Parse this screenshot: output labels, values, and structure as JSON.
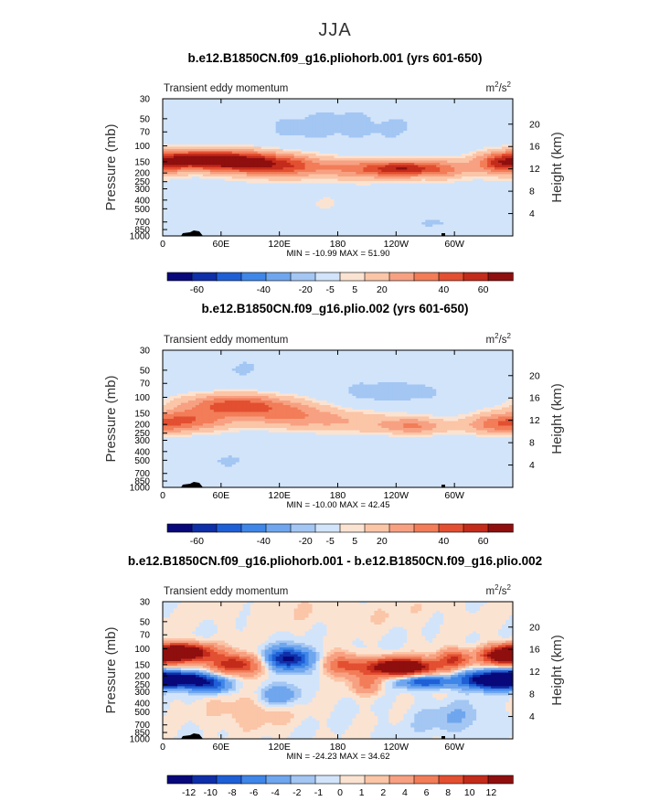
{
  "figure_title": "JJA",
  "colors": {
    "scale": [
      "#08087a",
      "#0f2fa8",
      "#1f5fd6",
      "#3f86e8",
      "#6fa6ee",
      "#a3c6f3",
      "#d2e4fa",
      "#fbe3d2",
      "#fbc5a7",
      "#f7a182",
      "#f27d58",
      "#e34f31",
      "#c32b1b",
      "#8f0f0f"
    ],
    "frame": "#000000",
    "topo": "#000000"
  },
  "chart_data": [
    {
      "type": "contour",
      "title": "b.e12.B1850CN.f09_g16.pliohorb.001 (yrs 601-650)",
      "left_label": "Transient eddy momentum",
      "units_label": "m",
      "units_sup1": "2",
      "units_mid": "/s",
      "units_sup2": "2",
      "ylabel": "Pressure (mb)",
      "ylabel_right": "Height (km)",
      "xticks": [
        "0",
        "60E",
        "120E",
        "180",
        "120W",
        "60W"
      ],
      "xtick_values": [
        0,
        60,
        120,
        180,
        240,
        300
      ],
      "xlim": [
        0,
        360
      ],
      "pressure_ticks": [
        "30",
        "50",
        "70",
        "100",
        "150",
        "200",
        "250",
        "300",
        "400",
        "500",
        "700",
        "850",
        "1000"
      ],
      "pressure_values": [
        30,
        50,
        70,
        100,
        150,
        200,
        250,
        300,
        400,
        500,
        700,
        850,
        1000
      ],
      "height_ticks": [
        "20",
        "16",
        "12",
        "8",
        "4"
      ],
      "height_values": [
        20,
        16,
        12,
        8,
        4
      ],
      "ylim": [
        1000,
        30
      ],
      "minmax": "MIN = -10.99   MAX =  51.90",
      "min": -10.99,
      "max": 51.9,
      "colorbar_labels": [
        "-60",
        "-40",
        "-20",
        "-5",
        "5",
        "20",
        "40",
        "60"
      ],
      "blobs": [
        {
          "lon": 30,
          "p": 140,
          "wl": 34,
          "wp": 0.18,
          "a": 46
        },
        {
          "lon": 80,
          "p": 150,
          "wl": 36,
          "wp": 0.2,
          "a": 52
        },
        {
          "lon": 130,
          "p": 170,
          "wl": 34,
          "wp": 0.2,
          "a": 34
        },
        {
          "lon": 210,
          "p": 180,
          "wl": 30,
          "wp": 0.18,
          "a": 32
        },
        {
          "lon": 250,
          "p": 180,
          "wl": 22,
          "wp": 0.14,
          "a": 44
        },
        {
          "lon": 290,
          "p": 180,
          "wl": 20,
          "wp": 0.18,
          "a": 28
        },
        {
          "lon": 350,
          "p": 160,
          "wl": 20,
          "wp": 0.2,
          "a": 42
        },
        {
          "lon": 180,
          "p": 60,
          "wl": 110,
          "wp": 0.5,
          "a": -6
        },
        {
          "lon": 60,
          "p": 600,
          "wl": 40,
          "wp": 0.3,
          "a": -5
        },
        {
          "lon": 280,
          "p": 700,
          "wl": 30,
          "wp": 0.3,
          "a": -6
        },
        {
          "lon": 170,
          "p": 450,
          "wl": 70,
          "wp": 0.4,
          "a": 5
        }
      ]
    },
    {
      "type": "contour",
      "title": "b.e12.B1850CN.f09_g16.plio.002 (yrs 601-650)",
      "left_label": "Transient eddy momentum",
      "units_label": "m",
      "units_sup1": "2",
      "units_mid": "/s",
      "units_sup2": "2",
      "ylabel": "Pressure (mb)",
      "ylabel_right": "Height (km)",
      "xticks": [
        "0",
        "60E",
        "120E",
        "180",
        "120W",
        "60W"
      ],
      "xtick_values": [
        0,
        60,
        120,
        180,
        240,
        300
      ],
      "xlim": [
        0,
        360
      ],
      "pressure_ticks": [
        "30",
        "50",
        "70",
        "100",
        "150",
        "200",
        "250",
        "300",
        "400",
        "500",
        "700",
        "850",
        "1000"
      ],
      "pressure_values": [
        30,
        50,
        70,
        100,
        150,
        200,
        250,
        300,
        400,
        500,
        700,
        850,
        1000
      ],
      "height_ticks": [
        "20",
        "16",
        "12",
        "8",
        "4"
      ],
      "height_values": [
        20,
        16,
        12,
        8,
        4
      ],
      "ylim": [
        1000,
        30
      ],
      "minmax": "MIN = -10.00   MAX =  42.45",
      "min": -10.0,
      "max": 42.45,
      "colorbar_labels": [
        "-60",
        "-40",
        "-20",
        "-5",
        "5",
        "20",
        "40",
        "60"
      ],
      "blobs": [
        {
          "lon": 75,
          "p": 120,
          "wl": 40,
          "wp": 0.2,
          "a": 42
        },
        {
          "lon": 30,
          "p": 180,
          "wl": 30,
          "wp": 0.2,
          "a": 32
        },
        {
          "lon": 130,
          "p": 160,
          "wl": 36,
          "wp": 0.22,
          "a": 26
        },
        {
          "lon": 200,
          "p": 190,
          "wl": 40,
          "wp": 0.2,
          "a": 16
        },
        {
          "lon": 260,
          "p": 210,
          "wl": 22,
          "wp": 0.15,
          "a": 28
        },
        {
          "lon": 345,
          "p": 200,
          "wl": 26,
          "wp": 0.18,
          "a": 32
        },
        {
          "lon": 240,
          "p": 90,
          "wl": 50,
          "wp": 0.25,
          "a": -7
        },
        {
          "lon": 100,
          "p": 50,
          "wl": 90,
          "wp": 0.4,
          "a": -5
        },
        {
          "lon": 60,
          "p": 500,
          "wl": 50,
          "wp": 0.3,
          "a": -5
        },
        {
          "lon": 300,
          "p": 500,
          "wl": 40,
          "wp": 0.4,
          "a": -4
        }
      ]
    },
    {
      "type": "contour",
      "title": "b.e12.B1850CN.f09_g16.pliohorb.001 - b.e12.B1850CN.f09_g16.plio.002",
      "left_label": "Transient eddy momentum",
      "units_label": "m",
      "units_sup1": "2",
      "units_mid": "/s",
      "units_sup2": "2",
      "ylabel": "Pressure (mb)",
      "ylabel_right": "Height (km)",
      "xticks": [
        "0",
        "60E",
        "120E",
        "180",
        "120W",
        "60W"
      ],
      "xtick_values": [
        0,
        60,
        120,
        180,
        240,
        300
      ],
      "xlim": [
        0,
        360
      ],
      "pressure_ticks": [
        "30",
        "50",
        "70",
        "100",
        "150",
        "200",
        "250",
        "300",
        "400",
        "500",
        "700",
        "850",
        "1000"
      ],
      "pressure_values": [
        30,
        50,
        70,
        100,
        150,
        200,
        250,
        300,
        400,
        500,
        700,
        850,
        1000
      ],
      "height_ticks": [
        "20",
        "16",
        "12",
        "8",
        "4"
      ],
      "height_values": [
        20,
        16,
        12,
        8,
        4
      ],
      "ylim": [
        1000,
        30
      ],
      "minmax": "MIN = -24.23   MAX =  34.62",
      "min": -24.23,
      "max": 34.62,
      "colorbar_labels": [
        "-12",
        "-10",
        "-8",
        "-6",
        "-4",
        "-2",
        "-1",
        "0",
        "1",
        "2",
        "4",
        "6",
        "8",
        "10",
        "12"
      ],
      "blobs": [
        {
          "lon": 20,
          "p": 110,
          "wl": 22,
          "wp": 0.16,
          "a": 16
        },
        {
          "lon": 20,
          "p": 220,
          "wl": 22,
          "wp": 0.13,
          "a": -13
        },
        {
          "lon": 75,
          "p": 150,
          "wl": 18,
          "wp": 0.18,
          "a": 10
        },
        {
          "lon": 50,
          "p": 260,
          "wl": 14,
          "wp": 0.14,
          "a": -6
        },
        {
          "lon": 130,
          "p": 130,
          "wl": 16,
          "wp": 0.2,
          "a": -11
        },
        {
          "lon": 120,
          "p": 330,
          "wl": 14,
          "wp": 0.2,
          "a": -4
        },
        {
          "lon": 185,
          "p": 150,
          "wl": 14,
          "wp": 0.2,
          "a": 6
        },
        {
          "lon": 210,
          "p": 250,
          "wl": 12,
          "wp": 0.2,
          "a": 4
        },
        {
          "lon": 245,
          "p": 160,
          "wl": 26,
          "wp": 0.16,
          "a": 16
        },
        {
          "lon": 270,
          "p": 230,
          "wl": 20,
          "wp": 0.12,
          "a": -8
        },
        {
          "lon": 300,
          "p": 130,
          "wl": 12,
          "wp": 0.16,
          "a": 8
        },
        {
          "lon": 340,
          "p": 220,
          "wl": 22,
          "wp": 0.16,
          "a": -15
        },
        {
          "lon": 350,
          "p": 120,
          "wl": 16,
          "wp": 0.16,
          "a": 12
        },
        {
          "lon": 90,
          "p": 500,
          "wl": 30,
          "wp": 0.3,
          "a": 2
        },
        {
          "lon": 300,
          "p": 600,
          "wl": 30,
          "wp": 0.3,
          "a": -2
        },
        {
          "lon": 180,
          "p": 40,
          "wl": 100,
          "wp": 0.3,
          "a": 0.8
        }
      ]
    }
  ]
}
